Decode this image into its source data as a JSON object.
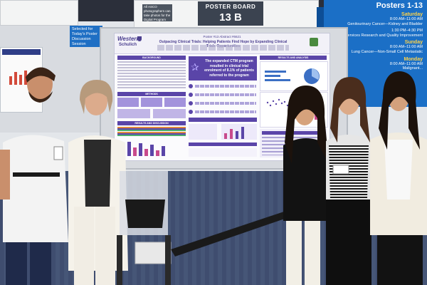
{
  "hall": {
    "board_label": "POSTER BOARD",
    "board_number": "13 B",
    "photo_note": "All ASCO photographers can take photos for the Digital Program",
    "discussion_note": "Selected for Today's Poster Discussion Session"
  },
  "schedule": {
    "header": "Posters 1-13",
    "days": [
      {
        "day": "Saturday",
        "time": "8:00 AM–11:00 AM",
        "track": "Genitourinary Cancer—Kidney and Bladder"
      },
      {
        "day": "",
        "time": "1:30 PM–4:30 PM",
        "track": "Health Services Research and Quality Improvement"
      },
      {
        "day": "Sunday",
        "time": "8:00 AM–11:00 AM",
        "track": "Lung Cancer—Non-Small Cell Metastatic"
      },
      {
        "day": "Monday",
        "time": "8:00 AM–11:00 AM",
        "track": "Malignant..."
      }
    ]
  },
  "poster": {
    "id": "Poster #13 Abstract #6621",
    "title": "Outpacing Clinical Trials: Helping Patients Find Hope by Expanding Clinical Trials Opportunities",
    "logo_left": "Western",
    "logo_sub": "Schulich",
    "sections": {
      "background": "BACKGROUND",
      "methods": "METHODS",
      "results": "RESULTS AND DISCUSSION",
      "right": "RESULTS AND ANALYSIS"
    },
    "callout": "The expanded CTM program resulted in clinical trial enrolment of 8.1% of patients referred to the program"
  },
  "colors": {
    "poster_purple": "#5a45a8",
    "schedule_blue": "#1b6fc6",
    "schedule_day": "#ffd34a"
  }
}
